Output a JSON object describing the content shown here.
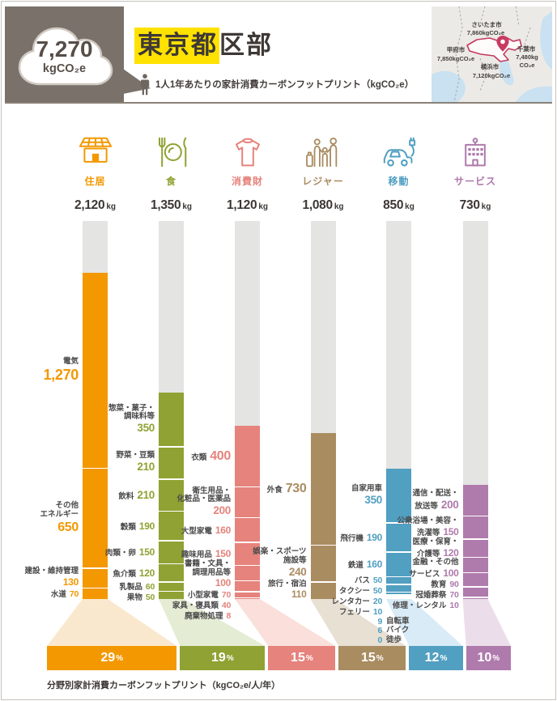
{
  "page": {
    "total_value": "7,270",
    "total_unit": "kgCO₂e",
    "title_highlight": "東京都",
    "title_rest": "区部",
    "subtitle": "1人1年あたりの家計消費カーボンフットプリント（kgCO₂e）",
    "caption": "分野別家計消費カーボンフットプリント（kgCO₂e/人/年）"
  },
  "map": {
    "cities": [
      {
        "name": "さいたま市",
        "value": "7,860kgCO₂e"
      },
      {
        "name": "甲府市",
        "value": "7,850kgCO₂e"
      },
      {
        "name": "千葉市",
        "value": "7,480kg",
        "value2": "CO₂e"
      },
      {
        "name": "横浜市",
        "value": "7,120kgCO₂e"
      }
    ]
  },
  "chart_data": {
    "type": "bar",
    "title": "東京都区部 1人1年あたりの家計消費カーボンフットプリント",
    "unit": "kgCO₂e/人/年",
    "total": 7270,
    "categories": [
      {
        "key": "housing",
        "label": "住居",
        "icon": "house-solar-icon",
        "total": 2120,
        "total_label": "2,120",
        "percent": 29,
        "color": "#F39800",
        "light": "#FAE8CE",
        "segments": [
          {
            "name": [
              "電気"
            ],
            "value": 1270,
            "value_label": "1,270",
            "own": true
          },
          {
            "name": [
              "その他",
              "エネルギー"
            ],
            "value": 650,
            "value_label": "650",
            "own": true
          },
          {
            "name": [
              "建設・維持管理"
            ],
            "value": 130,
            "value_label": "130",
            "own": true
          },
          {
            "name": [
              "水道"
            ],
            "value": 70,
            "value_label": "70"
          }
        ]
      },
      {
        "key": "food",
        "label": "食",
        "icon": "cutlery-plate-icon",
        "total": 1350,
        "total_label": "1,350",
        "percent": 19,
        "color": "#8FA233",
        "light": "#E5ECD4",
        "segments": [
          {
            "name": [
              "惣菜・菓子・",
              "調味料等"
            ],
            "value": 350,
            "value_label": "350",
            "own": true
          },
          {
            "name": [
              "野菜・豆類"
            ],
            "value": 210,
            "value_label": "210",
            "own": true
          },
          {
            "name": [
              "飲料"
            ],
            "value": 210,
            "value_label": "210"
          },
          {
            "name": [
              "穀類"
            ],
            "value": 190,
            "value_label": "190"
          },
          {
            "name": [
              "肉類・卵"
            ],
            "value": 150,
            "value_label": "150"
          },
          {
            "name": [
              "魚介類"
            ],
            "value": 120,
            "value_label": "120"
          },
          {
            "name": [
              "乳製品"
            ],
            "value": 60,
            "value_label": "60"
          },
          {
            "name": [
              "果物"
            ],
            "value": 50,
            "value_label": "50"
          }
        ]
      },
      {
        "key": "goods",
        "label": "消費財",
        "icon": "sweater-icon",
        "total": 1120,
        "total_label": "1,120",
        "percent": 15,
        "color": "#E5837C",
        "light": "#FADFDA",
        "segments": [
          {
            "name": [
              "衣類"
            ],
            "value": 400,
            "value_label": "400"
          },
          {
            "name": [
              "衛生用品・",
              "化粧品・医薬品"
            ],
            "value": 200,
            "value_label": "200",
            "own": true
          },
          {
            "name": [
              "大型家電"
            ],
            "value": 160,
            "value_label": "160"
          },
          {
            "name": [
              "趣味用品"
            ],
            "value": 150,
            "value_label": "150"
          },
          {
            "name": [
              "書籍・文具・",
              "調理用品等"
            ],
            "value": 100,
            "value_label": "100",
            "own": true
          },
          {
            "name": [
              "小型家電"
            ],
            "value": 70,
            "value_label": "70"
          },
          {
            "name": [
              "家具・寝具類"
            ],
            "value": 40,
            "value_label": "40"
          },
          {
            "name": [
              "廃棄物処理"
            ],
            "value": 8,
            "value_label": "8"
          }
        ]
      },
      {
        "key": "leisure",
        "label": "レジャー",
        "icon": "family-travel-icon",
        "total": 1080,
        "total_label": "1,080",
        "percent": 15,
        "color": "#AA8C61",
        "light": "#E7E0D3",
        "segments": [
          {
            "name": [
              "外食"
            ],
            "value": 730,
            "value_label": "730"
          },
          {
            "name": [
              "娯楽・スポーツ",
              "施設等"
            ],
            "value": 240,
            "value_label": "240",
            "own": true
          },
          {
            "name": [
              "旅行・宿泊"
            ],
            "value": 110,
            "value_label": "110",
            "own": true
          }
        ]
      },
      {
        "key": "mobility",
        "label": "移動",
        "icon": "ev-car-icon",
        "total": 850,
        "total_label": "850",
        "percent": 12,
        "color": "#519FC1",
        "light": "#D9EBF6",
        "segments": [
          {
            "name": [
              "自家用車"
            ],
            "value": 350,
            "value_label": "350",
            "own": true
          },
          {
            "name": [
              "飛行機"
            ],
            "value": 190,
            "value_label": "190"
          },
          {
            "name": [
              "鉄道"
            ],
            "value": 160,
            "value_label": "160"
          },
          {
            "name": [
              "バス"
            ],
            "value": 50,
            "value_label": "50"
          },
          {
            "name": [
              "タクシー"
            ],
            "value": 50,
            "value_label": "50"
          },
          {
            "name": [
              "レンタカー"
            ],
            "value": 20,
            "value_label": "20"
          },
          {
            "name": [
              "フェリー"
            ],
            "value": 10,
            "value_label": "10"
          },
          {
            "name": [
              "自転車"
            ],
            "value": 9,
            "value_label": "9",
            "after": true
          },
          {
            "name": [
              "バイク"
            ],
            "value": 6,
            "value_label": "6",
            "after": true
          },
          {
            "name": [
              "徒歩"
            ],
            "value": 0,
            "value_label": "0",
            "after": true
          }
        ]
      },
      {
        "key": "services",
        "label": "サービス",
        "icon": "building-icon",
        "total": 730,
        "total_label": "730",
        "percent": 10,
        "color": "#AF7AAC",
        "light": "#EBDEEA",
        "segments": [
          {
            "name": [
              "通信・配送・",
              "放送等"
            ],
            "value": 200,
            "value_label": "200"
          },
          {
            "name": [
              "公衆浴場・美容・",
              "洗濯等"
            ],
            "value": 150,
            "value_label": "150"
          },
          {
            "name": [
              "医療・保育・",
              "介護等"
            ],
            "value": 120,
            "value_label": "120"
          },
          {
            "name": [
              "金融・その他",
              "サービス"
            ],
            "value": 100,
            "value_label": "100"
          },
          {
            "name": [
              "教育"
            ],
            "value": 90,
            "value_label": "90"
          },
          {
            "name": [
              "冠婚葬祭"
            ],
            "value": 70,
            "value_label": "70"
          },
          {
            "name": [
              "修理・レンタル"
            ],
            "value": 10,
            "value_label": "10"
          }
        ]
      }
    ]
  }
}
